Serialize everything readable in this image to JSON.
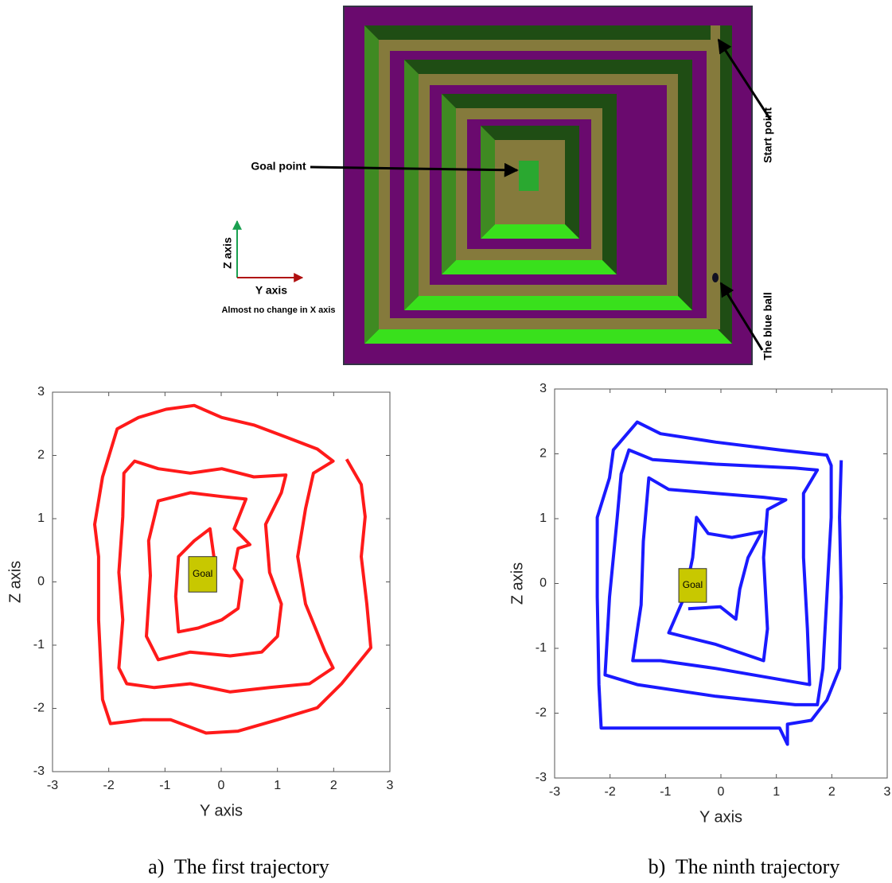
{
  "maze": {
    "goal_label": "Goal point",
    "start_label": "Start point",
    "ball_label": "The blue ball",
    "z_axis_label": "Z axis",
    "y_axis_label": "Y axis",
    "x_note": "Almost no change in X axis"
  },
  "chart_data": [
    {
      "type": "line",
      "xlabel": "Y axis",
      "ylabel": "Z axis",
      "caption": "a)  The first trajectory",
      "xlim": [
        -3,
        3
      ],
      "ylim": [
        -3,
        3
      ],
      "xticks": [
        -3,
        -2,
        -1,
        0,
        1,
        2,
        3
      ],
      "yticks": [
        -3,
        -2,
        -1,
        0,
        1,
        2,
        3
      ],
      "annotation": {
        "label": "Goal",
        "x": [
          -0.58,
          -0.08
        ],
        "y": [
          -0.16,
          0.4
        ]
      },
      "series": [
        {
          "color": "#ff1a1a",
          "x": [
            2.23,
            2.49,
            2.56,
            2.49,
            2.59,
            2.66,
            2.14,
            1.71,
            1.0,
            0.3,
            -0.27,
            -0.9,
            -1.4,
            -1.97,
            -2.11,
            -2.14,
            -2.18,
            -2.18,
            -2.25,
            -2.11,
            -1.85,
            -1.47,
            -0.98,
            -0.48,
            0.01,
            0.58,
            1.15,
            1.71,
            1.99,
            1.64,
            1.5,
            1.36,
            1.5,
            1.85,
            1.99,
            1.57,
            0.86,
            0.16,
            -0.55,
            -1.19,
            -1.68,
            -1.82,
            -1.75,
            -1.82,
            -1.75,
            -1.73,
            -1.54,
            -1.12,
            -0.55,
            0.01,
            0.58,
            1.15,
            1.07,
            0.79,
            0.86,
            1.07,
            1.0,
            0.72,
            0.16,
            -0.55,
            -1.12,
            -1.33,
            -1.26,
            -1.29,
            -1.12,
            -0.55,
            0.01,
            0.44,
            0.23,
            0.51,
            0.3,
            0.23,
            0.37,
            0.3,
            0.01,
            -0.41,
            -0.76,
            -0.81,
            -0.76,
            -0.48,
            -0.2,
            -0.13,
            -0.2
          ],
          "values": [
            1.94,
            1.54,
            1.03,
            0.4,
            -0.35,
            -1.04,
            -1.61,
            -1.99,
            -2.18,
            -2.36,
            -2.39,
            -2.18,
            -2.18,
            -2.24,
            -1.86,
            -1.36,
            -0.6,
            0.4,
            0.91,
            1.66,
            2.42,
            2.6,
            2.73,
            2.79,
            2.6,
            2.48,
            2.29,
            2.1,
            1.91,
            1.72,
            1.16,
            0.4,
            -0.35,
            -1.11,
            -1.36,
            -1.61,
            -1.67,
            -1.74,
            -1.61,
            -1.67,
            -1.61,
            -1.36,
            -0.6,
            0.15,
            1.03,
            1.72,
            1.91,
            1.79,
            1.72,
            1.79,
            1.66,
            1.69,
            1.41,
            0.91,
            0.15,
            -0.35,
            -0.86,
            -1.11,
            -1.17,
            -1.11,
            -1.23,
            -0.86,
            0.1,
            0.65,
            1.28,
            1.41,
            1.35,
            1.31,
            0.84,
            0.59,
            0.53,
            0.21,
            0.03,
            -0.42,
            -0.6,
            -0.73,
            -0.79,
            -0.23,
            0.4,
            0.65,
            0.84,
            0.4,
            0.15
          ]
        }
      ]
    },
    {
      "type": "line",
      "xlabel": "Y axis",
      "ylabel": "Z axis",
      "caption": "b)  The ninth trajectory",
      "xlim": [
        -3,
        3
      ],
      "ylim": [
        -3,
        3
      ],
      "xticks": [
        -3,
        -2,
        -1,
        0,
        1,
        2,
        3
      ],
      "yticks": [
        -3,
        -2,
        -1,
        0,
        1,
        2,
        3
      ],
      "annotation": {
        "label": "Goal",
        "x": [
          -0.76,
          -0.26
        ],
        "y": [
          -0.29,
          0.23
        ]
      },
      "series": [
        {
          "color": "#1a1aff",
          "x": [
            2.17,
            2.14,
            2.17,
            2.14,
            1.91,
            1.63,
            1.2,
            1.2,
            1.06,
            -0.09,
            -1.51,
            -2.16,
            -2.2,
            -2.23,
            -2.23,
            -2.01,
            -1.94,
            -1.51,
            -1.09,
            -0.09,
            1.06,
            1.91,
            1.99,
            1.99,
            1.91,
            1.84,
            1.74,
            1.34,
            -0.09,
            -1.51,
            -2.09,
            -2.01,
            -1.87,
            -1.8,
            -1.66,
            -1.23,
            -0.09,
            1.34,
            1.74,
            1.49,
            1.49,
            1.56,
            1.6,
            1.2,
            -0.09,
            -1.09,
            -1.59,
            -1.44,
            -1.4,
            -1.3,
            -0.94,
            -0.09,
            0.77,
            1.17,
            0.84,
            0.77,
            0.84,
            0.77,
            -0.09,
            -0.66,
            -0.94,
            -0.66,
            -0.51,
            -0.44,
            -0.23,
            0.2,
            0.74,
            0.49,
            0.34,
            0.27,
            -0.01,
            -0.59
          ],
          "values": [
            1.9,
            1.02,
            -0.21,
            -1.31,
            -1.8,
            -2.11,
            -2.17,
            -2.48,
            -2.23,
            -2.23,
            -2.23,
            -2.23,
            -1.56,
            -0.21,
            1.02,
            1.63,
            2.06,
            2.49,
            2.31,
            2.18,
            2.06,
            1.98,
            1.82,
            1.02,
            -0.21,
            -1.31,
            -1.87,
            -1.87,
            -1.74,
            -1.56,
            -1.41,
            -0.21,
            1.02,
            1.69,
            2.06,
            1.91,
            1.84,
            1.78,
            1.75,
            1.39,
            0.4,
            -0.7,
            -1.56,
            -1.5,
            -1.31,
            -1.19,
            -1.19,
            -0.33,
            0.65,
            1.63,
            1.45,
            1.39,
            1.33,
            1.29,
            1.14,
            0.4,
            -0.7,
            -1.19,
            -0.94,
            -0.82,
            -0.76,
            -0.21,
            0.4,
            1.02,
            0.77,
            0.71,
            0.8,
            0.4,
            -0.09,
            -0.55,
            -0.36,
            -0.39
          ]
        }
      ]
    }
  ]
}
